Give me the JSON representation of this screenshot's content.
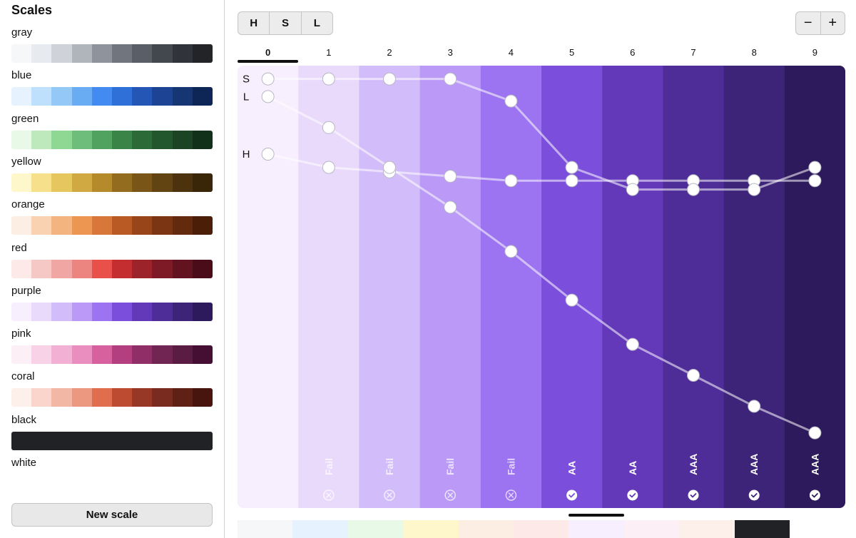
{
  "sidebar": {
    "title": "Scales",
    "scales": [
      {
        "name": "gray",
        "colors": [
          "#f6f7f9",
          "#e7eaee",
          "#cfd3d9",
          "#b0b5bc",
          "#8f949c",
          "#71767e",
          "#5a5f67",
          "#43474e",
          "#30333a",
          "#222428"
        ]
      },
      {
        "name": "blue",
        "colors": [
          "#e6f3ff",
          "#bfe0fc",
          "#94c8f7",
          "#6aacf3",
          "#438bf0",
          "#2f6fd8",
          "#2456b6",
          "#1c4394",
          "#163573",
          "#0d2656"
        ]
      },
      {
        "name": "green",
        "colors": [
          "#e8f9e7",
          "#bde9bd",
          "#8fd894",
          "#6ebd7a",
          "#52a25f",
          "#3a8447",
          "#2c6a38",
          "#22562d",
          "#1a4423",
          "#11311a"
        ]
      },
      {
        "name": "yellow",
        "colors": [
          "#fff7cc",
          "#f6e08b",
          "#e5c65f",
          "#d1a943",
          "#b48a2b",
          "#946c20",
          "#7a5518",
          "#624312",
          "#4d330d",
          "#392508"
        ]
      },
      {
        "name": "orange",
        "colors": [
          "#fdeee3",
          "#f9d2b2",
          "#f3b47f",
          "#ed9652",
          "#d9773a",
          "#b95a24",
          "#984519",
          "#7c3512",
          "#632a0e",
          "#4b1e08"
        ]
      },
      {
        "name": "red",
        "colors": [
          "#fde9e8",
          "#f6c8c5",
          "#f0a6a2",
          "#ec847f",
          "#e85049",
          "#c42e30",
          "#9d232b",
          "#7e1a26",
          "#63121f",
          "#4a0c18"
        ]
      },
      {
        "name": "purple",
        "colors": [
          "#f7eefe",
          "#e9dafc",
          "#d2bdfa",
          "#bb99f7",
          "#9c73f0",
          "#7b4edb",
          "#6339ba",
          "#4e2d98",
          "#3d2479",
          "#2c1a5c"
        ]
      },
      {
        "name": "pink",
        "colors": [
          "#fceff5",
          "#f8d3e7",
          "#f2b1d4",
          "#ea8ec0",
          "#d7609f",
          "#b43f80",
          "#8f2e67",
          "#712552",
          "#5a1c42",
          "#440f32"
        ]
      },
      {
        "name": "coral",
        "colors": [
          "#fdefea",
          "#f9d5cc",
          "#f3b7a6",
          "#ec9780",
          "#e06d4e",
          "#bc4b32",
          "#973826",
          "#782b1e",
          "#5f2016",
          "#48150e"
        ]
      },
      {
        "name": "black",
        "colors": [
          "#212226"
        ]
      },
      {
        "name": "white",
        "colors": []
      }
    ],
    "new_scale_label": "New scale"
  },
  "toolbar": {
    "hsl_buttons": [
      "H",
      "S",
      "L"
    ],
    "zoom_out_label": "−",
    "zoom_in_label": "+"
  },
  "steps": {
    "labels": [
      "0",
      "1",
      "2",
      "3",
      "4",
      "5",
      "6",
      "7",
      "8",
      "9"
    ],
    "active_index": 0,
    "colors": [
      "#f7eefe",
      "#e9dafc",
      "#d2bdfa",
      "#bb99f7",
      "#9c73f0",
      "#7b4edb",
      "#6339ba",
      "#4e2d98",
      "#3d2479",
      "#2c1a5c"
    ],
    "contrast": [
      "",
      "Fail",
      "Fail",
      "Fail",
      "Fail",
      "AA",
      "AA",
      "AAA",
      "AAA",
      "AAA"
    ],
    "contrast_pass": [
      null,
      false,
      false,
      false,
      false,
      true,
      true,
      true,
      true,
      true
    ]
  },
  "curves": {
    "labels": [
      "S",
      "L",
      "H"
    ],
    "s_values": [
      0.03,
      0.03,
      0.03,
      0.03,
      0.08,
      0.23,
      0.28,
      0.28,
      0.28,
      0.23
    ],
    "l_values": [
      0.07,
      0.14,
      0.23,
      0.32,
      0.42,
      0.53,
      0.63,
      0.7,
      0.77,
      0.83
    ],
    "h_values": [
      0.2,
      0.23,
      0.24,
      0.25,
      0.26,
      0.26,
      0.26,
      0.26,
      0.26,
      0.26
    ]
  },
  "bottom_strip": {
    "colors": [
      "#f6f7f9",
      "#e6f3ff",
      "#e8f9e7",
      "#fff7cc",
      "#fdeee3",
      "#fde9e8",
      "#f7eefe",
      "#fceff5",
      "#fdefea",
      "#212226"
    ]
  },
  "accent_colors": {
    "selected": "#111111",
    "point_fill": "#ffffff"
  }
}
